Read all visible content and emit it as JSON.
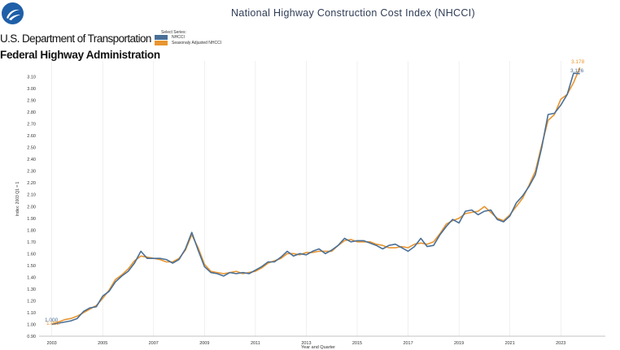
{
  "header": {
    "agency_line1": "U.S. Department of Transportation",
    "agency_line2": "Federal Highway Administration",
    "logo_icon": "usdot-logo-icon"
  },
  "chart_data": {
    "type": "line",
    "title": "National Highway Construction Cost Index (NHCCI)",
    "xlabel": "Year and Quarter",
    "ylabel": "Index: 2003 Q1 = 1",
    "x_range": [
      2002.5,
      2024.75
    ],
    "ylim": [
      0.9,
      3.2
    ],
    "y_ticks": [
      "0.90",
      "1.00",
      "1.10",
      "1.20",
      "1.30",
      "1.40",
      "1.50",
      "1.60",
      "1.70",
      "1.80",
      "1.90",
      "2.00",
      "2.10",
      "2.20",
      "2.30",
      "2.40",
      "2.50",
      "2.60",
      "2.70",
      "2.80",
      "2.90",
      "3.00",
      "3.10"
    ],
    "x_ticks": [
      "2003",
      "2005",
      "2007",
      "2009",
      "2011",
      "2013",
      "2015",
      "2017",
      "2019",
      "2021",
      "2023"
    ],
    "grid": "vertical",
    "legend": {
      "title": "Select Series:",
      "placement": "top-left",
      "entries": [
        {
          "name": "NHCCI",
          "color": "#4a6f96"
        },
        {
          "name": "Seasonaly Adjusted NHCCI",
          "color": "#e8952f"
        }
      ]
    },
    "start_labels": {
      "nhcci": "1.000",
      "sa": "1.002"
    },
    "end_labels": {
      "sa": "3.178",
      "nhcci": "3.126"
    },
    "series": [
      {
        "name": "NHCCI",
        "color": "#4a6f96",
        "x": [
          2003.0,
          2003.25,
          2003.5,
          2003.75,
          2004.0,
          2004.25,
          2004.5,
          2004.75,
          2005.0,
          2005.25,
          2005.5,
          2005.75,
          2006.0,
          2006.25,
          2006.5,
          2006.75,
          2007.0,
          2007.25,
          2007.5,
          2007.75,
          2008.0,
          2008.25,
          2008.5,
          2008.75,
          2009.0,
          2009.25,
          2009.5,
          2009.75,
          2010.0,
          2010.25,
          2010.5,
          2010.75,
          2011.0,
          2011.25,
          2011.5,
          2011.75,
          2012.0,
          2012.25,
          2012.5,
          2012.75,
          2013.0,
          2013.25,
          2013.5,
          2013.75,
          2014.0,
          2014.25,
          2014.5,
          2014.75,
          2015.0,
          2015.25,
          2015.5,
          2015.75,
          2016.0,
          2016.25,
          2016.5,
          2016.75,
          2017.0,
          2017.25,
          2017.5,
          2017.75,
          2018.0,
          2018.25,
          2018.5,
          2018.75,
          2019.0,
          2019.25,
          2019.5,
          2019.75,
          2020.0,
          2020.25,
          2020.5,
          2020.75,
          2021.0,
          2021.25,
          2021.5,
          2021.75,
          2022.0,
          2022.25,
          2022.5,
          2022.75,
          2023.0,
          2023.25,
          2023.5,
          2023.75
        ],
        "values": [
          1.0,
          1.01,
          1.02,
          1.03,
          1.05,
          1.11,
          1.14,
          1.15,
          1.24,
          1.28,
          1.36,
          1.41,
          1.45,
          1.52,
          1.62,
          1.56,
          1.56,
          1.56,
          1.55,
          1.52,
          1.55,
          1.64,
          1.78,
          1.63,
          1.49,
          1.44,
          1.43,
          1.41,
          1.44,
          1.43,
          1.44,
          1.43,
          1.46,
          1.49,
          1.53,
          1.53,
          1.57,
          1.62,
          1.58,
          1.6,
          1.59,
          1.62,
          1.64,
          1.6,
          1.63,
          1.67,
          1.73,
          1.7,
          1.71,
          1.71,
          1.69,
          1.67,
          1.64,
          1.67,
          1.68,
          1.65,
          1.62,
          1.66,
          1.73,
          1.66,
          1.67,
          1.76,
          1.83,
          1.89,
          1.86,
          1.96,
          1.97,
          1.93,
          1.96,
          1.97,
          1.89,
          1.87,
          1.92,
          2.03,
          2.09,
          2.17,
          2.27,
          2.5,
          2.78,
          2.79,
          2.86,
          2.95,
          3.13,
          3.126
        ]
      },
      {
        "name": "Seasonaly Adjusted NHCCI",
        "color": "#e8952f",
        "x": [
          2003.0,
          2003.25,
          2003.5,
          2003.75,
          2004.0,
          2004.25,
          2004.5,
          2004.75,
          2005.0,
          2005.25,
          2005.5,
          2005.75,
          2006.0,
          2006.25,
          2006.5,
          2006.75,
          2007.0,
          2007.25,
          2007.5,
          2007.75,
          2008.0,
          2008.25,
          2008.5,
          2008.75,
          2009.0,
          2009.25,
          2009.5,
          2009.75,
          2010.0,
          2010.25,
          2010.5,
          2010.75,
          2011.0,
          2011.25,
          2011.5,
          2011.75,
          2012.0,
          2012.25,
          2012.5,
          2012.75,
          2013.0,
          2013.25,
          2013.5,
          2013.75,
          2014.0,
          2014.25,
          2014.5,
          2014.75,
          2015.0,
          2015.25,
          2015.5,
          2015.75,
          2016.0,
          2016.25,
          2016.5,
          2016.75,
          2017.0,
          2017.25,
          2017.5,
          2017.75,
          2018.0,
          2018.25,
          2018.5,
          2018.75,
          2019.0,
          2019.25,
          2019.5,
          2019.75,
          2020.0,
          2020.25,
          2020.5,
          2020.75,
          2021.0,
          2021.25,
          2021.5,
          2021.75,
          2022.0,
          2022.25,
          2022.5,
          2022.75,
          2023.0,
          2023.25,
          2023.5,
          2023.75
        ],
        "values": [
          1.002,
          1.02,
          1.04,
          1.05,
          1.07,
          1.1,
          1.13,
          1.16,
          1.22,
          1.29,
          1.38,
          1.42,
          1.47,
          1.54,
          1.58,
          1.57,
          1.56,
          1.55,
          1.53,
          1.53,
          1.56,
          1.63,
          1.76,
          1.65,
          1.51,
          1.45,
          1.44,
          1.43,
          1.44,
          1.45,
          1.43,
          1.44,
          1.45,
          1.48,
          1.52,
          1.54,
          1.56,
          1.6,
          1.6,
          1.59,
          1.61,
          1.61,
          1.62,
          1.62,
          1.62,
          1.67,
          1.71,
          1.72,
          1.7,
          1.7,
          1.7,
          1.68,
          1.67,
          1.65,
          1.65,
          1.66,
          1.65,
          1.68,
          1.69,
          1.68,
          1.7,
          1.77,
          1.85,
          1.88,
          1.9,
          1.94,
          1.95,
          1.96,
          2.0,
          1.95,
          1.9,
          1.88,
          1.93,
          2.0,
          2.07,
          2.18,
          2.3,
          2.52,
          2.73,
          2.78,
          2.91,
          2.95,
          3.05,
          3.178
        ]
      }
    ]
  }
}
